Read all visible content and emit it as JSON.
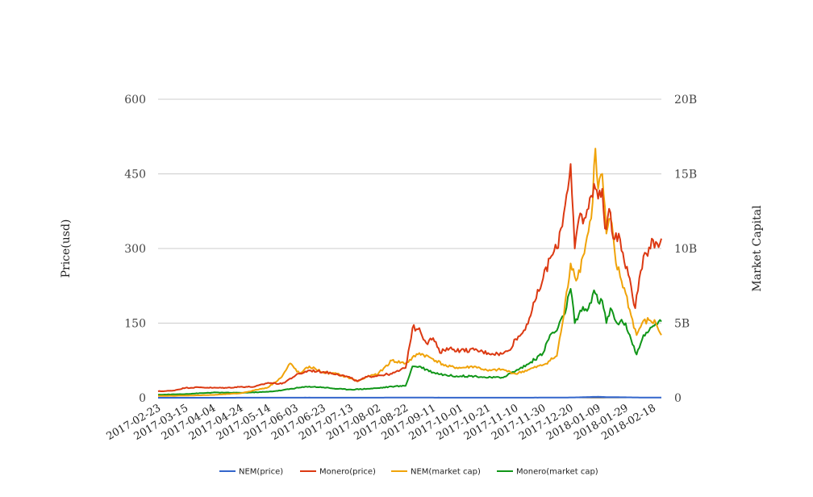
{
  "chart_data": {
    "type": "line",
    "y_left_label": "Price(usd)",
    "y_right_label": "Market Capital",
    "y_left_ticks": [
      "0",
      "150",
      "300",
      "450",
      "600"
    ],
    "y_right_ticks": [
      "0",
      "5B",
      "10B",
      "15B",
      "20B"
    ],
    "ylim_left": [
      0,
      600
    ],
    "ylim_right": [
      0,
      20000000000
    ],
    "x_ticks": [
      "2017-02-23",
      "2017-03-15",
      "2017-04-04",
      "2017-04-24",
      "2017-05-14",
      "2017-06-03",
      "2017-06-23",
      "2017-07-13",
      "2017-08-02",
      "2017-08-22",
      "2017-09-11",
      "2017-10-01",
      "2017-10-21",
      "2017-11-10",
      "2017-11-30",
      "2017-12-20",
      "2018-01-09",
      "2018-01-29",
      "2018-02-18"
    ],
    "x_range": [
      "2017-02-23",
      "2018-02-24"
    ],
    "grid": true,
    "legend_position": "bottom",
    "colors": {
      "NEM(price)": "#3366cc",
      "Monero(price)": "#dc3912",
      "NEM(market cap)": "#f0a30a",
      "Monero(market cap)": "#109618",
      "grid": "#cccccc"
    },
    "series": [
      {
        "name": "NEM(price)",
        "axis": "left",
        "points": [
          [
            "2017-02-23",
            0.01
          ],
          [
            "2017-04-01",
            0.02
          ],
          [
            "2017-05-14",
            0.15
          ],
          [
            "2017-06-10",
            0.25
          ],
          [
            "2017-07-13",
            0.15
          ],
          [
            "2017-08-22",
            0.3
          ],
          [
            "2017-10-01",
            0.2
          ],
          [
            "2017-11-10",
            0.2
          ],
          [
            "2017-12-10",
            0.3
          ],
          [
            "2017-12-25",
            0.8
          ],
          [
            "2018-01-04",
            1.6
          ],
          [
            "2018-01-09",
            1.9
          ],
          [
            "2018-01-17",
            1.2
          ],
          [
            "2018-01-29",
            0.9
          ],
          [
            "2018-02-10",
            0.5
          ],
          [
            "2018-02-24",
            0.45
          ]
        ]
      },
      {
        "name": "Monero(price)",
        "axis": "left",
        "points": [
          [
            "2017-02-23",
            13
          ],
          [
            "2017-03-05",
            14
          ],
          [
            "2017-03-15",
            20
          ],
          [
            "2017-03-25",
            21
          ],
          [
            "2017-04-04",
            20
          ],
          [
            "2017-04-14",
            20
          ],
          [
            "2017-04-24",
            22
          ],
          [
            "2017-05-04",
            22
          ],
          [
            "2017-05-14",
            30
          ],
          [
            "2017-05-24",
            28
          ],
          [
            "2017-06-03",
            45
          ],
          [
            "2017-06-13",
            55
          ],
          [
            "2017-06-23",
            52
          ],
          [
            "2017-07-03",
            48
          ],
          [
            "2017-07-13",
            40
          ],
          [
            "2017-07-18",
            33
          ],
          [
            "2017-07-25",
            42
          ],
          [
            "2017-08-02",
            45
          ],
          [
            "2017-08-12",
            48
          ],
          [
            "2017-08-22",
            60
          ],
          [
            "2017-08-27",
            140
          ],
          [
            "2017-09-01",
            140
          ],
          [
            "2017-09-06",
            110
          ],
          [
            "2017-09-11",
            120
          ],
          [
            "2017-09-16",
            90
          ],
          [
            "2017-09-21",
            100
          ],
          [
            "2017-10-01",
            95
          ],
          [
            "2017-10-11",
            96
          ],
          [
            "2017-10-21",
            90
          ],
          [
            "2017-10-31",
            88
          ],
          [
            "2017-11-05",
            95
          ],
          [
            "2017-11-10",
            118
          ],
          [
            "2017-11-15",
            130
          ],
          [
            "2017-11-20",
            160
          ],
          [
            "2017-11-25",
            200
          ],
          [
            "2017-11-30",
            240
          ],
          [
            "2017-12-05",
            280
          ],
          [
            "2017-12-10",
            300
          ],
          [
            "2017-12-15",
            370
          ],
          [
            "2017-12-20",
            470
          ],
          [
            "2017-12-23",
            300
          ],
          [
            "2017-12-26",
            360
          ],
          [
            "2017-12-29",
            350
          ],
          [
            "2018-01-02",
            380
          ],
          [
            "2018-01-06",
            430
          ],
          [
            "2018-01-09",
            400
          ],
          [
            "2018-01-12",
            420
          ],
          [
            "2018-01-14",
            340
          ],
          [
            "2018-01-17",
            380
          ],
          [
            "2018-01-20",
            320
          ],
          [
            "2018-01-24",
            330
          ],
          [
            "2018-01-29",
            260
          ],
          [
            "2018-02-01",
            240
          ],
          [
            "2018-02-05",
            180
          ],
          [
            "2018-02-09",
            255
          ],
          [
            "2018-02-13",
            290
          ],
          [
            "2018-02-17",
            320
          ],
          [
            "2018-02-21",
            310
          ],
          [
            "2018-02-24",
            320
          ]
        ]
      },
      {
        "name": "NEM(market cap)",
        "axis": "right",
        "points": [
          [
            "2017-02-23",
            120000000
          ],
          [
            "2017-03-15",
            140000000
          ],
          [
            "2017-04-04",
            190000000
          ],
          [
            "2017-04-24",
            300000000
          ],
          [
            "2017-05-14",
            700000000
          ],
          [
            "2017-05-24",
            1400000000
          ],
          [
            "2017-05-30",
            2300000000
          ],
          [
            "2017-06-06",
            1600000000
          ],
          [
            "2017-06-13",
            2100000000
          ],
          [
            "2017-06-23",
            1700000000
          ],
          [
            "2017-07-03",
            1600000000
          ],
          [
            "2017-07-13",
            1300000000
          ],
          [
            "2017-07-18",
            1100000000
          ],
          [
            "2017-07-25",
            1400000000
          ],
          [
            "2017-08-02",
            1600000000
          ],
          [
            "2017-08-12",
            2500000000
          ],
          [
            "2017-08-22",
            2300000000
          ],
          [
            "2017-09-01",
            3000000000
          ],
          [
            "2017-09-11",
            2600000000
          ],
          [
            "2017-09-21",
            2100000000
          ],
          [
            "2017-10-01",
            2000000000
          ],
          [
            "2017-10-11",
            2100000000
          ],
          [
            "2017-10-21",
            1800000000
          ],
          [
            "2017-10-31",
            1900000000
          ],
          [
            "2017-11-10",
            1600000000
          ],
          [
            "2017-11-20",
            1900000000
          ],
          [
            "2017-11-30",
            2200000000
          ],
          [
            "2017-12-10",
            2800000000
          ],
          [
            "2017-12-15",
            5500000000
          ],
          [
            "2017-12-20",
            9000000000
          ],
          [
            "2017-12-25",
            8000000000
          ],
          [
            "2017-12-29",
            9500000000
          ],
          [
            "2018-01-04",
            12000000000
          ],
          [
            "2018-01-07",
            16700000000
          ],
          [
            "2018-01-09",
            14000000000
          ],
          [
            "2018-01-12",
            15000000000
          ],
          [
            "2018-01-15",
            11000000000
          ],
          [
            "2018-01-18",
            12000000000
          ],
          [
            "2018-01-22",
            9000000000
          ],
          [
            "2018-01-29",
            7000000000
          ],
          [
            "2018-02-02",
            5500000000
          ],
          [
            "2018-02-06",
            4200000000
          ],
          [
            "2018-02-10",
            5000000000
          ],
          [
            "2018-02-15",
            5200000000
          ],
          [
            "2018-02-20",
            5000000000
          ],
          [
            "2018-02-24",
            4200000000
          ]
        ]
      },
      {
        "name": "Monero(market cap)",
        "axis": "right",
        "points": [
          [
            "2017-02-23",
            200000000
          ],
          [
            "2017-03-15",
            250000000
          ],
          [
            "2017-04-04",
            350000000
          ],
          [
            "2017-04-24",
            330000000
          ],
          [
            "2017-05-14",
            400000000
          ],
          [
            "2017-05-24",
            500000000
          ],
          [
            "2017-06-03",
            650000000
          ],
          [
            "2017-06-13",
            750000000
          ],
          [
            "2017-06-23",
            700000000
          ],
          [
            "2017-07-03",
            600000000
          ],
          [
            "2017-07-13",
            550000000
          ],
          [
            "2017-07-25",
            600000000
          ],
          [
            "2017-08-02",
            650000000
          ],
          [
            "2017-08-12",
            750000000
          ],
          [
            "2017-08-22",
            800000000
          ],
          [
            "2017-08-27",
            2100000000
          ],
          [
            "2017-09-01",
            2100000000
          ],
          [
            "2017-09-11",
            1700000000
          ],
          [
            "2017-09-21",
            1500000000
          ],
          [
            "2017-10-01",
            1450000000
          ],
          [
            "2017-10-11",
            1450000000
          ],
          [
            "2017-10-21",
            1350000000
          ],
          [
            "2017-10-31",
            1350000000
          ],
          [
            "2017-11-10",
            1800000000
          ],
          [
            "2017-11-20",
            2300000000
          ],
          [
            "2017-11-30",
            3000000000
          ],
          [
            "2017-12-05",
            4200000000
          ],
          [
            "2017-12-10",
            4500000000
          ],
          [
            "2017-12-15",
            5500000000
          ],
          [
            "2017-12-20",
            7300000000
          ],
          [
            "2017-12-23",
            5000000000
          ],
          [
            "2017-12-28",
            5800000000
          ],
          [
            "2018-01-02",
            6000000000
          ],
          [
            "2018-01-06",
            7200000000
          ],
          [
            "2018-01-09",
            6400000000
          ],
          [
            "2018-01-12",
            6500000000
          ],
          [
            "2018-01-15",
            5000000000
          ],
          [
            "2018-01-18",
            6000000000
          ],
          [
            "2018-01-22",
            5100000000
          ],
          [
            "2018-01-29",
            5000000000
          ],
          [
            "2018-02-02",
            3900000000
          ],
          [
            "2018-02-06",
            2900000000
          ],
          [
            "2018-02-10",
            3900000000
          ],
          [
            "2018-02-15",
            4500000000
          ],
          [
            "2018-02-20",
            5000000000
          ],
          [
            "2018-02-24",
            5100000000
          ]
        ]
      }
    ]
  }
}
